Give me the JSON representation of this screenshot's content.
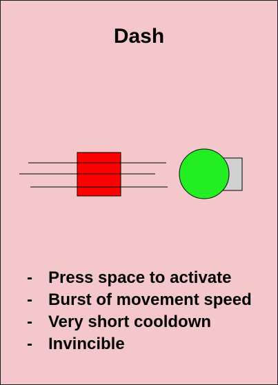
{
  "card": {
    "title": "Dash",
    "background_color": "#f4c8cb",
    "player_color": "#ff0000",
    "orb_color": "#22ee22",
    "shield_color": "#d0d0d0",
    "bullet_marker": "-",
    "features": [
      "Press space to activate",
      "Burst of movement speed",
      "Very short cooldown",
      "Invincible"
    ]
  }
}
